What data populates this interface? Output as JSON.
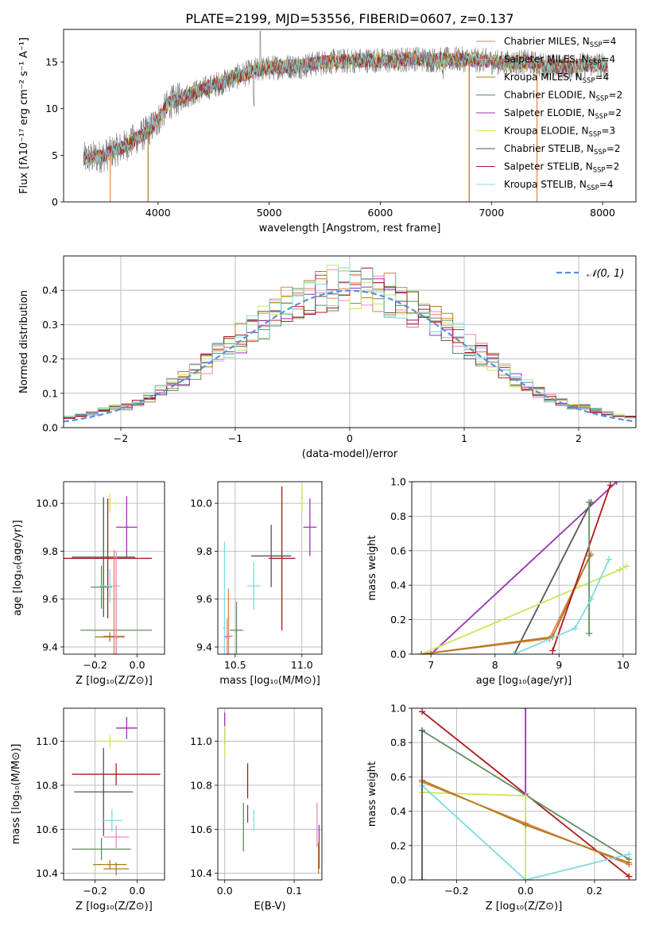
{
  "title": "PLATE=2199, MJD=53556, FIBERID=0607, z=0.137",
  "model_colors": {
    "Chabrier MILES": "#e0834b",
    "Salpeter MILES": "#e98ac0",
    "Kroupa MILES": "#b07a1e",
    "Chabrier ELODIE": "#5f8f5f",
    "Salpeter ELODIE": "#9a32b0",
    "Kroupa ELODIE": "#cbe65a",
    "Chabrier STELIB": "#555555",
    "Salpeter STELIB": "#b01818",
    "Kroupa STELIB": "#7fdbe0"
  },
  "chart_data": [
    {
      "id": "spectrum",
      "type": "line",
      "xlabel": "wavelength [Angstrom, rest frame]",
      "ylabel": "Flux [fλ10⁻¹⁷ erg cm⁻² s⁻¹ A⁻¹]",
      "xlim": [
        3150,
        8300
      ],
      "ylim": [
        0,
        18.5
      ],
      "xticks": [
        4000,
        5000,
        6000,
        7000,
        8000
      ],
      "yticks": [
        0,
        5,
        10,
        15
      ],
      "envelope": {
        "x": [
          3330,
          3500,
          3700,
          3900,
          4000,
          4100,
          4300,
          4500,
          4700,
          4900,
          5100,
          5300,
          5500,
          5700,
          5900,
          6100,
          6300,
          6500,
          6700,
          6900,
          7100,
          7300,
          7500,
          7700,
          7900,
          8050
        ],
        "y": [
          4.6,
          4.9,
          6.0,
          7.5,
          8.8,
          10.6,
          11.6,
          12.5,
          13.4,
          14.2,
          14.5,
          14.6,
          15.0,
          15.1,
          15.2,
          15.1,
          15.4,
          15.2,
          15.3,
          15.2,
          14.9,
          15.0,
          14.6,
          14.5,
          14.8,
          14.6
        ]
      },
      "legend": [
        {
          "name": "Chabrier MILES, N",
          "sub": "SSP",
          "post": "=4"
        },
        {
          "name": "Salpeter MILES, N",
          "sub": "SSP",
          "post": "=4"
        },
        {
          "name": "Kroupa MILES, N",
          "sub": "SSP",
          "post": "=4"
        },
        {
          "name": "Chabrier ELODIE, N",
          "sub": "SSP",
          "post": "=2"
        },
        {
          "name": "Salpeter ELODIE, N",
          "sub": "SSP",
          "post": "=2"
        },
        {
          "name": "Kroupa ELODIE, N",
          "sub": "SSP",
          "post": "=3"
        },
        {
          "name": "Chabrier STELIB, N",
          "sub": "SSP",
          "post": "=2"
        },
        {
          "name": "Salpeter STELIB, N",
          "sub": "SSP",
          "post": "=2"
        },
        {
          "name": "Kroupa STELIB, N",
          "sub": "SSP",
          "post": "=4"
        }
      ],
      "legend_placement": "top-right"
    },
    {
      "id": "residuals",
      "type": "histogram",
      "xlabel": "(data-model)/error",
      "ylabel": "Normed distribution",
      "xlim": [
        -2.5,
        2.5
      ],
      "ylim": [
        0,
        0.5
      ],
      "xticks": [
        -2,
        -1,
        0,
        1,
        2
      ],
      "yticks": [
        0.0,
        0.1,
        0.2,
        0.3,
        0.4
      ],
      "grid": true,
      "legend_label": "𝒩(0, 1)",
      "legend_placement": "top-right"
    },
    {
      "id": "age-vs-Z",
      "type": "errorbar",
      "xlabel": "Z [log₁₀(Z/Z⊙)]",
      "ylabel": "age  [log₁₀(age/yr)]",
      "xlim": [
        -0.35,
        0.13
      ],
      "ylim": [
        9.37,
        10.09
      ],
      "xticks": [
        -0.2,
        0.0
      ],
      "yticks": [
        9.4,
        9.6,
        9.8,
        10.0
      ],
      "grid": true,
      "points": [
        {
          "model": "Kroupa ELODIE",
          "x": -0.13,
          "y": 10.0,
          "xerr": 0.04,
          "yerr": 0.04
        },
        {
          "model": "Salpeter ELODIE",
          "x": -0.05,
          "y": 9.9,
          "xerr": 0.05,
          "yerr": 0.13
        },
        {
          "model": "Chabrier STELIB",
          "x": -0.16,
          "y": 9.775,
          "xerr": 0.15,
          "yerr": 0.25
        },
        {
          "model": "Salpeter STELIB",
          "x": -0.14,
          "y": 9.77,
          "xerr": 0.21,
          "yerr": 0.25
        },
        {
          "model": "Chabrier ELODIE",
          "x": -0.17,
          "y": 9.65,
          "xerr": 0.05,
          "yerr": 0.09
        },
        {
          "model": "Kroupa STELIB",
          "x": -0.13,
          "y": 9.655,
          "xerr": 0.05,
          "yerr": 0.07
        },
        {
          "model": "Chabrier ELODIE",
          "x": -0.1,
          "y": 9.47,
          "xerr": 0.17,
          "yerr": 0.2
        },
        {
          "model": "Chabrier MILES",
          "x": -0.11,
          "y": 9.445,
          "xerr": 0.05,
          "yerr": 0.36
        },
        {
          "model": "Kroupa MILES",
          "x": -0.13,
          "y": 9.442,
          "xerr": 0.07,
          "yerr": 0.02
        },
        {
          "model": "Salpeter MILES",
          "x": -0.1,
          "y": 9.44,
          "xerr": 0.02,
          "yerr": 0.36
        }
      ]
    },
    {
      "id": "age-vs-mass",
      "type": "errorbar",
      "xlabel": "mass [log₁₀(M/M⊙)]",
      "xlim": [
        10.37,
        11.15
      ],
      "ylim": [
        9.37,
        10.09
      ],
      "xticks": [
        10.5,
        11.0
      ],
      "yticks": [
        9.4,
        9.6,
        9.8,
        10.0
      ],
      "grid": true,
      "points": [
        {
          "model": "Kroupa ELODIE",
          "x": 11.0,
          "y": 10.02,
          "xerr": 0.01,
          "yerr": 0.06
        },
        {
          "model": "Salpeter ELODIE",
          "x": 11.06,
          "y": 9.9,
          "xerr": 0.05,
          "yerr": 0.12
        },
        {
          "model": "Chabrier STELIB",
          "x": 10.77,
          "y": 9.78,
          "xerr": 0.15,
          "yerr": 0.13
        },
        {
          "model": "Salpeter STELIB",
          "x": 10.85,
          "y": 9.77,
          "xerr": 0.1,
          "yerr": 0.3
        },
        {
          "model": "Kroupa STELIB",
          "x": 10.64,
          "y": 9.655,
          "xerr": 0.05,
          "yerr": 0.1
        },
        {
          "model": "Chabrier ELODIE",
          "x": 10.51,
          "y": 9.47,
          "xerr": 0.05,
          "yerr": 0.12
        },
        {
          "model": "Chabrier MILES",
          "x": 10.45,
          "y": 9.445,
          "xerr": 0.03,
          "yerr": 0.2
        },
        {
          "model": "Kroupa STELIB",
          "x": 10.42,
          "y": 9.48,
          "xerr": 0.01,
          "yerr": 0.36
        },
        {
          "model": "Salpeter MILES",
          "x": 10.44,
          "y": 9.44,
          "xerr": 0.02,
          "yerr": 0.08
        }
      ]
    },
    {
      "id": "massweight-vs-age",
      "type": "line",
      "xlabel": "age  [log₁₀(age/yr)]",
      "ylabel": "mass weight",
      "xlim": [
        6.7,
        10.2
      ],
      "ylim": [
        0,
        1
      ],
      "xticks": [
        7,
        8,
        9,
        10
      ],
      "yticks": [
        0.0,
        0.2,
        0.4,
        0.6,
        0.8,
        1.0
      ],
      "grid": true,
      "series": [
        {
          "model": "Salpeter ELODIE",
          "x": [
            7.0,
            9.9
          ],
          "y": [
            0.0,
            1.0
          ]
        },
        {
          "model": "Chabrier STELIB",
          "x": [
            8.3,
            9.5
          ],
          "y": [
            0.0,
            0.88
          ]
        },
        {
          "model": "Kroupa ELODIE",
          "x": [
            6.85,
            9.95,
            10.05
          ],
          "y": [
            0.0,
            0.49,
            0.51
          ]
        },
        {
          "model": "Chabrier MILES",
          "x": [
            6.85,
            8.85,
            9.5
          ],
          "y": [
            0.0,
            0.09,
            0.58
          ]
        },
        {
          "model": "Kroupa MILES",
          "x": [
            6.85,
            8.9,
            9.48
          ],
          "y": [
            0.0,
            0.1,
            0.57
          ]
        },
        {
          "model": "Salpeter STELIB",
          "x": [
            8.9,
            9.8
          ],
          "y": [
            0.02,
            0.98
          ]
        },
        {
          "model": "Chabrier ELODIE",
          "x": [
            9.47,
            9.47
          ],
          "y": [
            0.12,
            0.88
          ]
        },
        {
          "model": "Kroupa STELIB",
          "x": [
            8.3,
            9.25,
            9.5,
            9.78
          ],
          "y": [
            0.0,
            0.15,
            0.32,
            0.55
          ]
        }
      ]
    },
    {
      "id": "mass-vs-Z",
      "type": "errorbar",
      "xlabel": "Z [log₁₀(Z/Z⊙)]",
      "ylabel": "mass [log₁₀(M/M⊙)]",
      "xlim": [
        -0.35,
        0.13
      ],
      "ylim": [
        10.37,
        11.15
      ],
      "xticks": [
        -0.2,
        0.0
      ],
      "yticks": [
        10.4,
        10.6,
        10.8,
        11.0
      ],
      "grid": true,
      "points": [
        {
          "model": "Salpeter ELODIE",
          "x": -0.05,
          "y": 11.06,
          "xerr": 0.05,
          "yerr": 0.05
        },
        {
          "model": "Kroupa ELODIE",
          "x": -0.13,
          "y": 11.0,
          "xerr": 0.07,
          "yerr": 0.03
        },
        {
          "model": "Salpeter STELIB",
          "x": -0.1,
          "y": 10.85,
          "xerr": 0.21,
          "yerr": 0.05
        },
        {
          "model": "Chabrier STELIB",
          "x": -0.16,
          "y": 10.77,
          "xerr": 0.14,
          "yerr": 0.2
        },
        {
          "model": "Kroupa STELIB",
          "x": -0.12,
          "y": 10.64,
          "xerr": 0.05,
          "yerr": 0.05
        },
        {
          "model": "Salpeter MILES",
          "x": -0.1,
          "y": 10.565,
          "xerr": 0.06,
          "yerr": 0.05
        },
        {
          "model": "Chabrier ELODIE",
          "x": -0.17,
          "y": 10.51,
          "xerr": 0.14,
          "yerr": 0.05
        },
        {
          "model": "Kroupa MILES",
          "x": -0.13,
          "y": 10.44,
          "xerr": 0.08,
          "yerr": 0.02
        },
        {
          "model": "Kroupa MILES",
          "x": -0.1,
          "y": 10.42,
          "xerr": 0.06,
          "yerr": 0.03
        }
      ]
    },
    {
      "id": "mass-vs-ebv",
      "type": "errorbar",
      "xlabel": "E(B-V)",
      "xlim": [
        -0.01,
        0.14
      ],
      "ylim": [
        10.37,
        11.15
      ],
      "xticks": [
        0.0,
        0.1
      ],
      "yticks": [
        10.4,
        10.6,
        10.8,
        11.0
      ],
      "grid": true,
      "points": [
        {
          "model": "Salpeter ELODIE",
          "x": 0.0,
          "y": 11.06,
          "xerr": 0.0,
          "yerr": 0.07
        },
        {
          "model": "Kroupa ELODIE",
          "x": 0.0,
          "y": 11.0,
          "xerr": 0.0,
          "yerr": 0.07
        },
        {
          "model": "Salpeter STELIB",
          "x": 0.033,
          "y": 10.82,
          "xerr": 0.0,
          "yerr": 0.08
        },
        {
          "model": "Chabrier STELIB",
          "x": 0.033,
          "y": 10.67,
          "xerr": 0.0,
          "yerr": 0.04
        },
        {
          "model": "Kroupa STELIB",
          "x": 0.042,
          "y": 10.64,
          "xerr": 0.0,
          "yerr": 0.05
        },
        {
          "model": "Chabrier ELODIE",
          "x": 0.027,
          "y": 10.61,
          "xerr": 0.0,
          "yerr": 0.11
        },
        {
          "model": "Salpeter MILES",
          "x": 0.133,
          "y": 10.62,
          "xerr": 0.0,
          "yerr": 0.1
        },
        {
          "model": "Salpeter ELODIE",
          "x": 0.136,
          "y": 10.52,
          "xerr": 0.0,
          "yerr": 0.1
        },
        {
          "model": "Kroupa MILES",
          "x": 0.135,
          "y": 10.47,
          "xerr": 0.0,
          "yerr": 0.07
        }
      ]
    },
    {
      "id": "massweight-vs-Z",
      "type": "line",
      "xlabel": "Z [log₁₀(Z/Z⊙)]",
      "ylabel": "mass weight",
      "xlim": [
        -0.33,
        0.32
      ],
      "ylim": [
        0,
        1
      ],
      "xticks": [
        -0.2,
        0.0,
        0.2
      ],
      "yticks": [
        0.0,
        0.2,
        0.4,
        0.6,
        0.8,
        1.0
      ],
      "grid": true,
      "series": [
        {
          "model": "Salpeter STELIB",
          "x": [
            -0.3,
            0.3
          ],
          "y": [
            0.98,
            0.02
          ]
        },
        {
          "model": "Chabrier ELODIE",
          "x": [
            -0.3,
            0.3
          ],
          "y": [
            0.87,
            0.12
          ]
        },
        {
          "model": "Salpeter ELODIE",
          "x": [
            0.0,
            0.0
          ],
          "y": [
            0.5,
            1.0
          ]
        },
        {
          "model": "Kroupa ELODIE",
          "x": [
            -0.3,
            0.0,
            0.0
          ],
          "y": [
            0.51,
            0.49,
            0.0
          ]
        },
        {
          "model": "Chabrier MILES",
          "x": [
            -0.3,
            0.0,
            0.3
          ],
          "y": [
            0.57,
            0.33,
            0.09
          ]
        },
        {
          "model": "Kroupa MILES",
          "x": [
            -0.3,
            0.0,
            0.3
          ],
          "y": [
            0.58,
            0.32,
            0.1
          ]
        },
        {
          "model": "Kroupa STELIB",
          "x": [
            -0.3,
            0.0,
            0.3
          ],
          "y": [
            0.55,
            0.0,
            0.15
          ]
        },
        {
          "model": "Chabrier STELIB",
          "x": [
            -0.3,
            -0.3
          ],
          "y": [
            0.0,
            0.87
          ]
        }
      ]
    }
  ]
}
